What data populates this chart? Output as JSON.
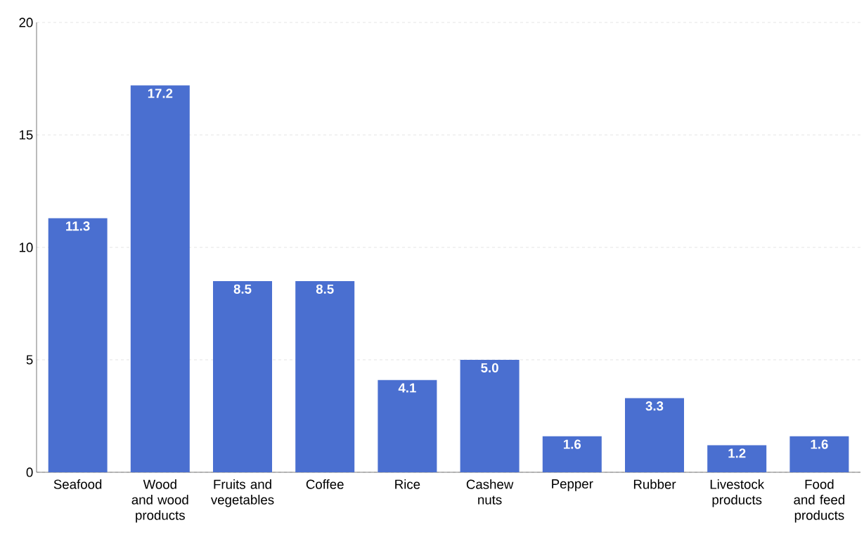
{
  "chart_data": {
    "type": "bar",
    "categories": [
      "Seafood",
      "Wood and wood products",
      "Fruits and vegetables",
      "Coffee",
      "Rice",
      "Cashew nuts",
      "Pepper",
      "Rubber",
      "Livestock products",
      "Food and feed products"
    ],
    "values": [
      11.3,
      17.2,
      8.5,
      8.5,
      4.1,
      5.0,
      1.6,
      3.3,
      1.2,
      1.6
    ],
    "value_labels": [
      "11.3",
      "17.2",
      "8.5",
      "8.5",
      "4.1",
      "5.0",
      "1.6",
      "3.3",
      "1.2",
      "1.6"
    ],
    "color": "#4a6fd0",
    "ylim": [
      0,
      20
    ],
    "yticks": [
      0,
      5,
      10,
      15,
      20
    ],
    "grid": "y"
  }
}
